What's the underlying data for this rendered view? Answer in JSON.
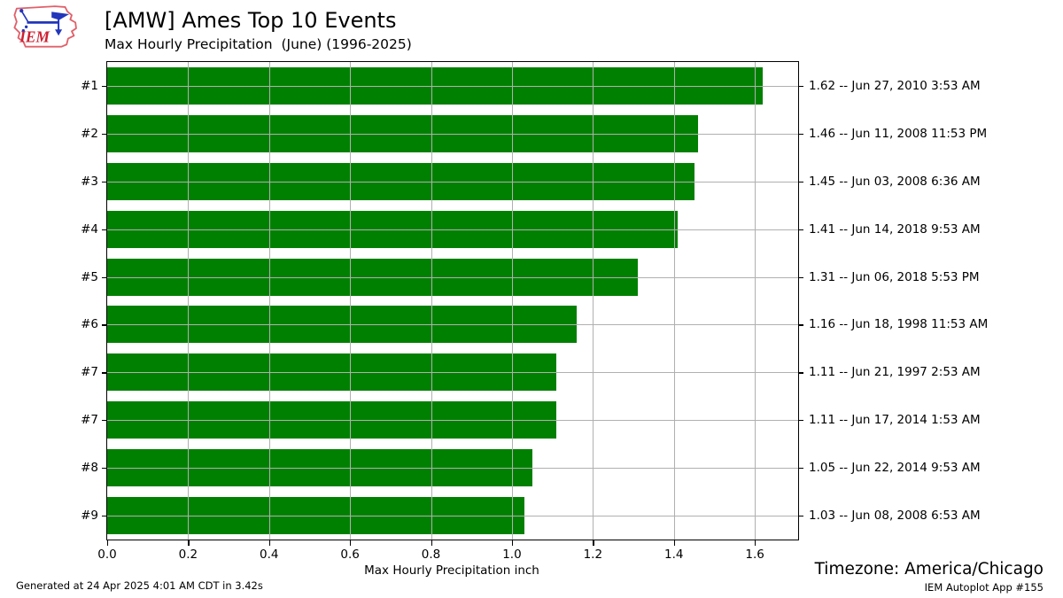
{
  "header": {
    "title": "[AMW] Ames Top 10 Events",
    "subtitle": "Max Hourly Precipitation  (June) (1996-2025)",
    "logo_text": "IEM"
  },
  "chart_data": {
    "type": "bar",
    "orientation": "horizontal",
    "title": "[AMW] Ames Top 10 Events",
    "subtitle": "Max Hourly Precipitation  (June) (1996-2025)",
    "xlabel": "Max Hourly Precipitation inch",
    "xlim": [
      0,
      1.707
    ],
    "xticks": [
      0.0,
      0.2,
      0.4,
      0.6,
      0.8,
      1.0,
      1.2,
      1.4,
      1.6
    ],
    "grid": true,
    "legend": "none",
    "bar_color": "#008000",
    "grid_color": "#b0b0b0",
    "categories": [
      "#1",
      "#2",
      "#3",
      "#4",
      "#5",
      "#6",
      "#7",
      "#7",
      "#8",
      "#9"
    ],
    "values": [
      1.62,
      1.46,
      1.45,
      1.41,
      1.31,
      1.16,
      1.11,
      1.11,
      1.05,
      1.03
    ],
    "rows": [
      {
        "rank": "#1",
        "value": 1.62,
        "label": "1.62 -- Jun 27, 2010 3:53 AM"
      },
      {
        "rank": "#2",
        "value": 1.46,
        "label": "1.46 -- Jun 11, 2008 11:53 PM"
      },
      {
        "rank": "#3",
        "value": 1.45,
        "label": "1.45 -- Jun 03, 2008 6:36 AM"
      },
      {
        "rank": "#4",
        "value": 1.41,
        "label": "1.41 -- Jun 14, 2018 9:53 AM"
      },
      {
        "rank": "#5",
        "value": 1.31,
        "label": "1.31 -- Jun 06, 2018 5:53 PM"
      },
      {
        "rank": "#6",
        "value": 1.16,
        "label": "1.16 -- Jun 18, 1998 11:53 AM"
      },
      {
        "rank": "#7",
        "value": 1.11,
        "label": "1.11 -- Jun 21, 1997 2:53 AM"
      },
      {
        "rank": "#7",
        "value": 1.11,
        "label": "1.11 -- Jun 17, 2014 1:53 AM"
      },
      {
        "rank": "#8",
        "value": 1.05,
        "label": "1.05 -- Jun 22, 2014 9:53 AM"
      },
      {
        "rank": "#9",
        "value": 1.03,
        "label": "1.03 -- Jun 08, 2008 6:53 AM"
      }
    ]
  },
  "footer": {
    "generated": "Generated at 24 Apr 2025 4:01 AM CDT in 3.42s",
    "timezone": "Timezone: America/Chicago",
    "app": "IEM Autoplot App #155"
  }
}
